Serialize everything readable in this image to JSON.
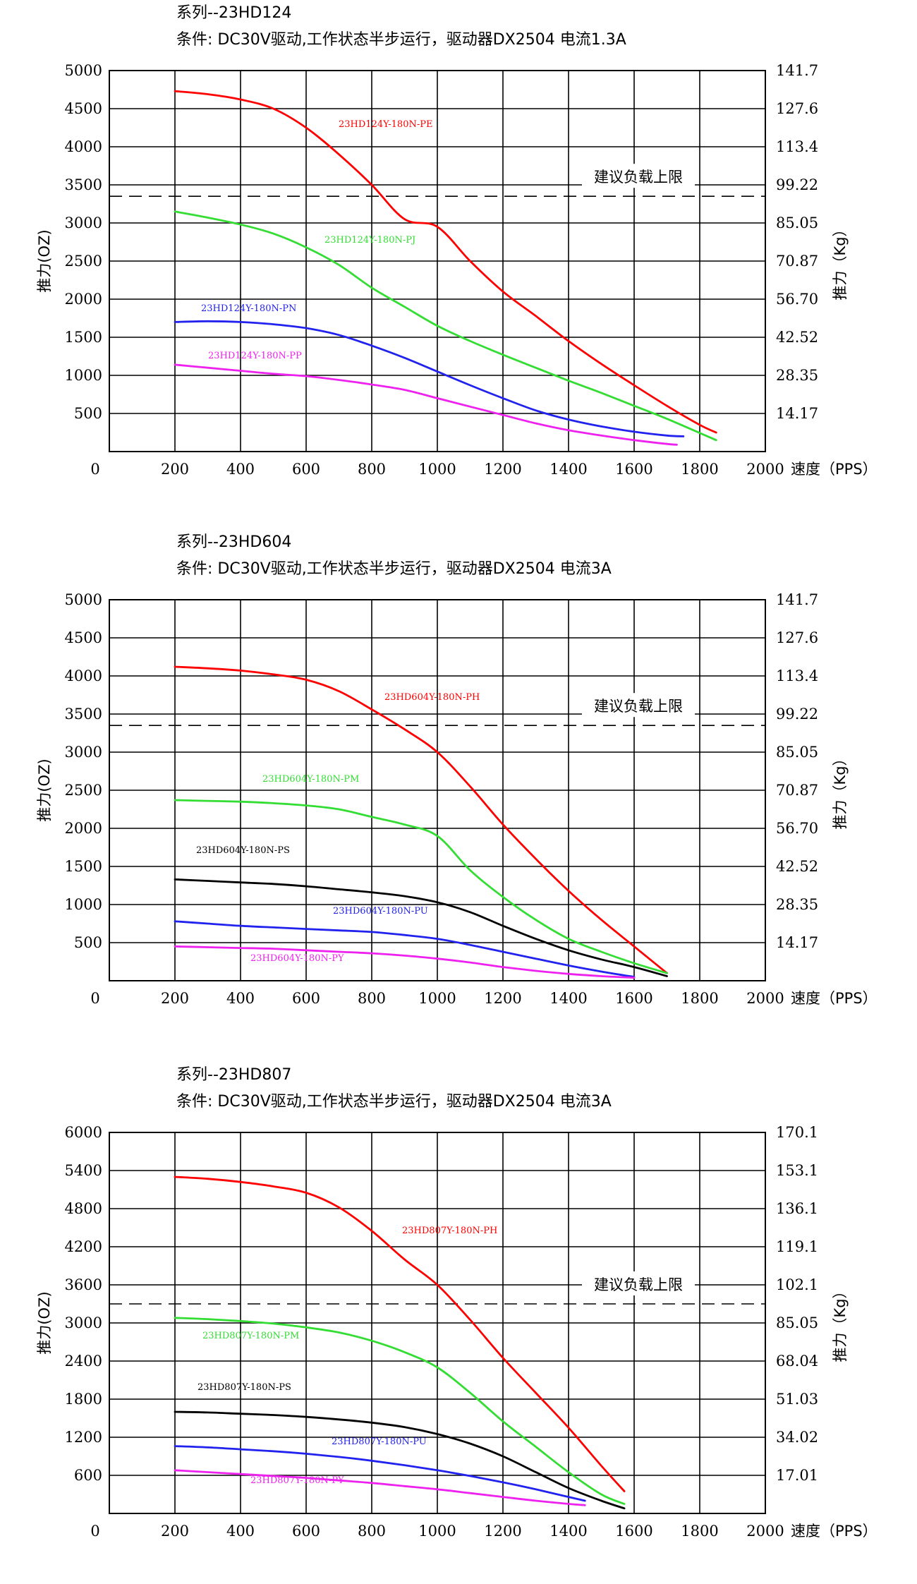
{
  "charts": [
    {
      "series_title": "系列--23HD124",
      "condition": "条件: DC30V驱动,工作状态半步运行，驱动器DX2504 电流1.3A",
      "y_ticks": [
        "5000",
        "4500",
        "4000",
        "3500",
        "3000",
        "2500",
        "2000",
        "1500",
        "1000",
        "500"
      ],
      "y2_ticks": [
        "141.7",
        "127.6",
        "113.4",
        "99.22",
        "85.05",
        "70.87",
        "56.70",
        "42.52",
        "28.35",
        "14.17"
      ],
      "x_ticks": [
        "0",
        "200",
        "400",
        "600",
        "800",
        "1000",
        "1200",
        "1400",
        "1600",
        "1800",
        "2000"
      ],
      "x_label": "速度（PPS）",
      "y_label": "推力(OZ)",
      "y2_label": "推力（Kg）",
      "limit_label": "建议负载上限"
    },
    {
      "series_title": "系列--23HD604",
      "condition": "条件: DC30V驱动,工作状态半步运行，驱动器DX2504 电流3A",
      "y_ticks": [
        "5000",
        "4500",
        "4000",
        "3500",
        "3000",
        "2500",
        "2000",
        "1500",
        "1000",
        "500"
      ],
      "y2_ticks": [
        "141.7",
        "127.6",
        "113.4",
        "99.22",
        "85.05",
        "70.87",
        "56.70",
        "42.52",
        "28.35",
        "14.17"
      ],
      "x_ticks": [
        "0",
        "200",
        "400",
        "600",
        "800",
        "1000",
        "1200",
        "1400",
        "1600",
        "1800",
        "2000"
      ],
      "x_label": "速度（PPS）",
      "y_label": "推力(OZ)",
      "y2_label": "推力（Kg）",
      "limit_label": "建议负载上限"
    },
    {
      "series_title": "系列--23HD807",
      "condition": "条件: DC30V驱动,工作状态半步运行，驱动器DX2504 电流3A",
      "y_ticks": [
        "6000",
        "5400",
        "4800",
        "4200",
        "3600",
        "3000",
        "2400",
        "1800",
        "1200",
        "600"
      ],
      "y2_ticks": [
        "170.1",
        "153.1",
        "136.1",
        "119.1",
        "102.1",
        "85.05",
        "68.04",
        "51.03",
        "34.02",
        "17.01"
      ],
      "x_ticks": [
        "0",
        "200",
        "400",
        "600",
        "800",
        "1000",
        "1200",
        "1400",
        "1600",
        "1800",
        "2000"
      ],
      "x_label": "速度（PPS）",
      "y_label": "推力(OZ)",
      "y2_label": "推力（Kg）",
      "limit_label": "建议负载上限"
    }
  ],
  "chart_data": [
    {
      "type": "line",
      "title": "系列--23HD124",
      "xlabel": "速度（PPS）",
      "ylabel": "推力(OZ)",
      "y2label": "推力（Kg）",
      "xlim": [
        0,
        2000
      ],
      "ylim": [
        0,
        5000
      ],
      "grid": true,
      "reference_line": {
        "y": 3350,
        "label": "建议负载上限",
        "style": "dashed"
      },
      "series": [
        {
          "name": "23HD124Y-180N-PE",
          "color": "#ff0000",
          "x": [
            200,
            300,
            400,
            500,
            600,
            700,
            800,
            900,
            1000,
            1100,
            1200,
            1300,
            1400,
            1500,
            1600,
            1700,
            1800,
            1850
          ],
          "y": [
            4730,
            4690,
            4620,
            4500,
            4250,
            3900,
            3500,
            3050,
            2950,
            2500,
            2100,
            1780,
            1450,
            1150,
            870,
            600,
            350,
            250
          ]
        },
        {
          "name": "23HD124Y-180N-PJ",
          "color": "#33dd33",
          "x": [
            200,
            300,
            400,
            500,
            600,
            700,
            800,
            900,
            1000,
            1100,
            1200,
            1300,
            1400,
            1500,
            1600,
            1700,
            1850
          ],
          "y": [
            3150,
            3070,
            2980,
            2860,
            2680,
            2450,
            2150,
            1900,
            1650,
            1450,
            1270,
            1100,
            930,
            770,
            600,
            430,
            150
          ]
        },
        {
          "name": "23HD124Y-180N-PN",
          "color": "#2222ee",
          "x": [
            200,
            300,
            400,
            500,
            600,
            700,
            800,
            900,
            1000,
            1100,
            1200,
            1300,
            1400,
            1500,
            1600,
            1700,
            1750
          ],
          "y": [
            1700,
            1710,
            1700,
            1670,
            1620,
            1530,
            1390,
            1230,
            1050,
            870,
            700,
            540,
            420,
            330,
            260,
            210,
            200
          ]
        },
        {
          "name": "23HD124Y-180N-PP",
          "color": "#ee22ee",
          "x": [
            200,
            300,
            400,
            500,
            600,
            700,
            800,
            900,
            1000,
            1100,
            1200,
            1300,
            1400,
            1500,
            1600,
            1700,
            1730
          ],
          "y": [
            1140,
            1100,
            1060,
            1020,
            990,
            940,
            880,
            810,
            700,
            590,
            480,
            370,
            280,
            210,
            150,
            100,
            90
          ]
        }
      ]
    },
    {
      "type": "line",
      "title": "系列--23HD604",
      "xlabel": "速度（PPS）",
      "ylabel": "推力(OZ)",
      "y2label": "推力（Kg）",
      "xlim": [
        0,
        2000
      ],
      "ylim": [
        0,
        5000
      ],
      "grid": true,
      "reference_line": {
        "y": 3350,
        "label": "建议负载上限",
        "style": "dashed"
      },
      "series": [
        {
          "name": "23HD604Y-180N-PH",
          "color": "#ff0000",
          "x": [
            200,
            300,
            400,
            500,
            600,
            700,
            800,
            900,
            1000,
            1100,
            1200,
            1300,
            1400,
            1500,
            1600,
            1700
          ],
          "y": [
            4120,
            4100,
            4070,
            4020,
            3950,
            3800,
            3560,
            3300,
            3000,
            2550,
            2050,
            1600,
            1180,
            800,
            450,
            100
          ]
        },
        {
          "name": "23HD604Y-180N-PM",
          "color": "#33dd33",
          "x": [
            200,
            300,
            400,
            500,
            600,
            700,
            800,
            900,
            1000,
            1100,
            1200,
            1300,
            1400,
            1500,
            1600,
            1700
          ],
          "y": [
            2370,
            2360,
            2350,
            2330,
            2300,
            2250,
            2150,
            2050,
            1900,
            1450,
            1100,
            800,
            550,
            380,
            230,
            100
          ]
        },
        {
          "name": "23HD604Y-180N-PS",
          "color": "#000000",
          "x": [
            200,
            300,
            400,
            500,
            600,
            700,
            800,
            900,
            1000,
            1100,
            1200,
            1300,
            1400,
            1500,
            1600,
            1700
          ],
          "y": [
            1330,
            1310,
            1290,
            1270,
            1240,
            1200,
            1160,
            1110,
            1030,
            900,
            720,
            550,
            400,
            280,
            180,
            60
          ]
        },
        {
          "name": "23HD604Y-180N-PU",
          "color": "#2222ee",
          "x": [
            200,
            300,
            400,
            500,
            600,
            700,
            800,
            900,
            1000,
            1100,
            1200,
            1300,
            1400,
            1500,
            1600
          ],
          "y": [
            780,
            750,
            720,
            700,
            680,
            660,
            640,
            600,
            550,
            470,
            380,
            290,
            200,
            120,
            50
          ]
        },
        {
          "name": "23HD604Y-180N-PY",
          "color": "#ee22ee",
          "x": [
            200,
            300,
            400,
            500,
            600,
            700,
            800,
            900,
            1000,
            1100,
            1200,
            1300,
            1400,
            1500,
            1600
          ],
          "y": [
            450,
            440,
            430,
            420,
            400,
            380,
            360,
            330,
            290,
            240,
            180,
            130,
            90,
            60,
            40
          ]
        }
      ]
    },
    {
      "type": "line",
      "title": "系列--23HD807",
      "xlabel": "速度（PPS）",
      "ylabel": "推力(OZ)",
      "y2label": "推力（Kg）",
      "xlim": [
        0,
        2000
      ],
      "ylim": [
        0,
        6000
      ],
      "grid": true,
      "reference_line": {
        "y": 3300,
        "label": "建议负载上限",
        "style": "dashed"
      },
      "series": [
        {
          "name": "23HD807Y-180N-PH",
          "color": "#ff0000",
          "x": [
            200,
            300,
            400,
            500,
            600,
            700,
            800,
            900,
            1000,
            1100,
            1200,
            1300,
            1400,
            1500,
            1570
          ],
          "y": [
            5300,
            5270,
            5220,
            5150,
            5050,
            4820,
            4450,
            4000,
            3600,
            3050,
            2450,
            1900,
            1350,
            750,
            350
          ]
        },
        {
          "name": "23HD807Y-180N-PM",
          "color": "#33dd33",
          "x": [
            200,
            300,
            400,
            500,
            600,
            700,
            800,
            900,
            1000,
            1100,
            1200,
            1300,
            1400,
            1500,
            1570
          ],
          "y": [
            3080,
            3060,
            3030,
            2990,
            2930,
            2850,
            2720,
            2540,
            2300,
            1900,
            1450,
            1050,
            650,
            300,
            150
          ]
        },
        {
          "name": "23HD807Y-180N-PS",
          "color": "#000000",
          "x": [
            200,
            300,
            400,
            500,
            600,
            700,
            800,
            900,
            1000,
            1100,
            1200,
            1300,
            1400,
            1500,
            1570
          ],
          "y": [
            1600,
            1590,
            1570,
            1550,
            1520,
            1480,
            1430,
            1360,
            1250,
            1100,
            900,
            650,
            400,
            200,
            80
          ]
        },
        {
          "name": "23HD807Y-180N-PU",
          "color": "#2222ee",
          "x": [
            200,
            300,
            400,
            500,
            600,
            700,
            800,
            900,
            1000,
            1100,
            1200,
            1300,
            1400,
            1450
          ],
          "y": [
            1060,
            1040,
            1010,
            980,
            940,
            890,
            830,
            760,
            680,
            590,
            490,
            380,
            260,
            200
          ]
        },
        {
          "name": "23HD807Y-180N-PY",
          "color": "#ee22ee",
          "x": [
            200,
            300,
            400,
            500,
            600,
            700,
            800,
            900,
            1000,
            1100,
            1200,
            1300,
            1400,
            1450
          ],
          "y": [
            680,
            650,
            620,
            590,
            560,
            520,
            480,
            430,
            380,
            320,
            260,
            200,
            150,
            130
          ]
        }
      ]
    }
  ]
}
